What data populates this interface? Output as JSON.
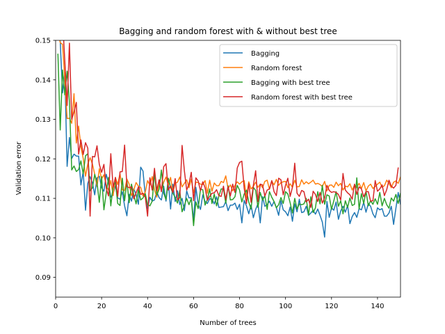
{
  "chart_data": {
    "type": "line",
    "title": "Bagging and random forest with & without best tree",
    "xlabel": "Number of trees",
    "ylabel": "Validation error",
    "xlim": [
      0,
      150
    ],
    "ylim": [
      0.085,
      0.15
    ],
    "xticks": [
      0,
      20,
      40,
      60,
      80,
      100,
      120,
      140
    ],
    "yticks": [
      0.09,
      0.1,
      0.11,
      0.12,
      0.13,
      0.14,
      0.15
    ],
    "ytick_labels": [
      "0.09",
      "0.10",
      "0.11",
      "0.12",
      "0.13",
      "0.14",
      "0.15"
    ],
    "grid": false,
    "legend_position": "top-right",
    "x_start": 1,
    "series": [
      {
        "name": "Bagging",
        "color": "#1f77b4",
        "values": [
          0.1532,
          0.1497,
          0.1367,
          0.1418,
          0.1181,
          0.1254,
          0.1201,
          0.1212,
          0.1207,
          0.1207,
          0.1134,
          0.1168,
          0.107,
          0.1138,
          0.1155,
          0.1139,
          0.1109,
          0.1152,
          0.1156,
          0.1127,
          0.1118,
          0.1161,
          0.1139,
          0.1103,
          0.1112,
          0.1132,
          0.1101,
          0.1098,
          0.1117,
          0.1081,
          0.1056,
          0.111,
          0.1093,
          0.1124,
          0.111,
          0.1085,
          0.1179,
          0.1169,
          0.1106,
          0.1074,
          0.1103,
          0.1093,
          0.1096,
          0.1117,
          0.1102,
          0.1096,
          0.1131,
          0.1093,
          0.1142,
          0.1073,
          0.1136,
          0.1092,
          0.1119,
          0.1084,
          0.11,
          0.1069,
          0.1119,
          0.1101,
          0.1102,
          0.1045,
          0.1128,
          0.1086,
          0.1072,
          0.1109,
          0.1092,
          0.1087,
          0.1099,
          0.1098,
          0.1086,
          0.1104,
          0.1077,
          0.1078,
          0.1079,
          0.1092,
          0.1069,
          0.1083,
          0.1083,
          0.1088,
          0.1072,
          0.1085,
          0.1038,
          0.1095,
          0.1081,
          0.1061,
          0.1083,
          0.1051,
          0.1072,
          0.1087,
          0.1038,
          0.1104,
          0.108,
          0.1084,
          0.1093,
          0.108,
          0.1092,
          0.1077,
          0.1057,
          0.1094,
          0.1071,
          0.1066,
          0.1056,
          0.1078,
          0.1042,
          0.1086,
          0.1066,
          0.1098,
          0.1064,
          0.1066,
          0.108,
          0.1057,
          0.1063,
          0.107,
          0.106,
          0.1073,
          0.1057,
          0.104,
          0.1002,
          0.1092,
          0.1052,
          0.1076,
          0.107,
          0.1091,
          0.1047,
          0.1068,
          0.108,
          0.1065,
          0.1082,
          0.1036,
          0.1054,
          0.1064,
          0.1052,
          0.1074,
          0.1071,
          0.109,
          0.1065,
          0.1087,
          0.108,
          0.1061,
          0.1051,
          0.1076,
          0.1071,
          0.1074,
          0.1055,
          0.1055,
          0.1063,
          0.108,
          0.1034,
          0.1075,
          0.1115,
          0.1085
        ]
      },
      {
        "name": "Random forest",
        "color": "#ff7f0e",
        "values": [
          0.1531,
          0.1494,
          0.149,
          0.1402,
          0.1302,
          0.1303,
          0.129,
          0.1365,
          0.124,
          0.1283,
          0.123,
          0.1201,
          0.1156,
          0.1187,
          0.1203,
          0.1187,
          0.1161,
          0.113,
          0.1175,
          0.1149,
          0.116,
          0.1133,
          0.1121,
          0.1145,
          0.1107,
          0.1153,
          0.1135,
          0.1163,
          0.1121,
          0.112,
          0.1149,
          0.1136,
          0.1107,
          0.1122,
          0.114,
          0.1131,
          0.1128,
          0.1106,
          0.1116,
          0.1145,
          0.1133,
          0.1155,
          0.1122,
          0.1103,
          0.1145,
          0.112,
          0.1141,
          0.1154,
          0.1133,
          0.1153,
          0.1115,
          0.1138,
          0.1141,
          0.1154,
          0.1129,
          0.1138,
          0.1147,
          0.1127,
          0.1149,
          0.1114,
          0.1141,
          0.114,
          0.1136,
          0.1135,
          0.1145,
          0.1113,
          0.1146,
          0.1118,
          0.1139,
          0.1132,
          0.1132,
          0.1143,
          0.114,
          0.1157,
          0.1125,
          0.1134,
          0.1119,
          0.1133,
          0.1142,
          0.1136,
          0.1142,
          0.1145,
          0.1102,
          0.1142,
          0.1124,
          0.113,
          0.1141,
          0.1128,
          0.1136,
          0.1127,
          0.1143,
          0.1146,
          0.1123,
          0.1144,
          0.1134,
          0.1148,
          0.1133,
          0.114,
          0.1142,
          0.1143,
          0.1127,
          0.1137,
          0.1128,
          0.1146,
          0.1129,
          0.113,
          0.1147,
          0.1136,
          0.1142,
          0.1137,
          0.1141,
          0.1146,
          0.1136,
          0.1138,
          0.1135,
          0.113,
          0.1143,
          0.1119,
          0.1133,
          0.1134,
          0.1128,
          0.1141,
          0.1132,
          0.1138,
          0.1121,
          0.1131,
          0.1129,
          0.1137,
          0.1121,
          0.1134,
          0.1128,
          0.1138,
          0.1125,
          0.114,
          0.1119,
          0.1131,
          0.1136,
          0.1125,
          0.113,
          0.1136,
          0.1141,
          0.1128,
          0.1132,
          0.1146,
          0.1138,
          0.1127,
          0.1141,
          0.1144,
          0.1138,
          0.1154
        ]
      },
      {
        "name": "Bagging with best tree",
        "color": "#2ca02c",
        "values": [
          0.1465,
          0.1273,
          0.1425,
          0.1362,
          0.1422,
          0.1345,
          0.1172,
          0.1182,
          0.1168,
          0.1173,
          0.1195,
          0.1162,
          0.1208,
          0.1213,
          0.1119,
          0.1127,
          0.1161,
          0.114,
          0.109,
          0.1155,
          0.1071,
          0.1113,
          0.1153,
          0.1081,
          0.1131,
          0.1141,
          0.1087,
          0.1082,
          0.1151,
          0.1094,
          0.1143,
          0.1089,
          0.1136,
          0.1109,
          0.1086,
          0.1122,
          0.1096,
          0.1101,
          0.1112,
          0.1084,
          0.1081,
          0.1093,
          0.1164,
          0.1108,
          0.1123,
          0.1172,
          0.1113,
          0.1097,
          0.1151,
          0.1128,
          0.1113,
          0.1102,
          0.1088,
          0.112,
          0.1066,
          0.1082,
          0.11,
          0.1084,
          0.11,
          0.1031,
          0.1091,
          0.1074,
          0.1123,
          0.1122,
          0.1083,
          0.1097,
          0.1124,
          0.1087,
          0.1111,
          0.1081,
          0.1106,
          0.1124,
          0.1124,
          0.1088,
          0.1132,
          0.1096,
          0.1097,
          0.1104,
          0.1133,
          0.1121,
          0.1091,
          0.1111,
          0.1121,
          0.1091,
          0.1073,
          0.1128,
          0.112,
          0.1077,
          0.1115,
          0.1095,
          0.1107,
          0.1072,
          0.1117,
          0.1103,
          0.1092,
          0.1076,
          0.1084,
          0.1102,
          0.1087,
          0.1117,
          0.1111,
          0.1089,
          0.1063,
          0.11,
          0.1073,
          0.1086,
          0.1084,
          0.1086,
          0.11,
          0.1058,
          0.1104,
          0.1064,
          0.1076,
          0.1117,
          0.1086,
          0.1133,
          0.1085,
          0.1109,
          0.1106,
          0.1072,
          0.1094,
          0.1117,
          0.108,
          0.1094,
          0.1061,
          0.1094,
          0.1077,
          0.1101,
          0.1082,
          0.1085,
          0.1152,
          0.1073,
          0.1112,
          0.1087,
          0.1118,
          0.1081,
          0.1094,
          0.1085,
          0.1099,
          0.1085,
          0.1115,
          0.1081,
          0.11,
          0.1084,
          0.1075,
          0.1101,
          0.1093,
          0.111,
          0.1087,
          0.1113,
          0.1092
        ]
      },
      {
        "name": "Random forest with best tree",
        "color": "#d62728",
        "values": [
          0.155,
          0.1529,
          0.1552,
          0.1448,
          0.1335,
          0.1493,
          0.13,
          0.1319,
          0.1343,
          0.1212,
          0.1248,
          0.1211,
          0.1241,
          0.1227,
          0.1055,
          0.1206,
          0.1205,
          0.1233,
          0.1186,
          0.1166,
          0.1186,
          0.1126,
          0.1106,
          0.1213,
          0.1128,
          0.1153,
          0.1105,
          0.1167,
          0.1168,
          0.1235,
          0.113,
          0.1127,
          0.1129,
          0.1099,
          0.1114,
          0.1129,
          0.111,
          0.1113,
          0.1103,
          0.1055,
          0.1152,
          0.1121,
          0.1176,
          0.112,
          0.1147,
          0.1117,
          0.118,
          0.1188,
          0.1121,
          0.1131,
          0.1115,
          0.115,
          0.1096,
          0.1102,
          0.1234,
          0.117,
          0.1121,
          0.1136,
          0.1166,
          0.1094,
          0.1152,
          0.1144,
          0.1119,
          0.1142,
          0.1127,
          0.1095,
          0.1105,
          0.1113,
          0.1114,
          0.1122,
          0.1107,
          0.1105,
          0.1131,
          0.1097,
          0.113,
          0.1106,
          0.1136,
          0.1115,
          0.1177,
          0.1191,
          0.1194,
          0.1126,
          0.1087,
          0.1138,
          0.109,
          0.1133,
          0.117,
          0.1092,
          0.1136,
          0.1134,
          0.1106,
          0.1121,
          0.1124,
          0.1145,
          0.1117,
          0.1107,
          0.1151,
          0.1147,
          0.1109,
          0.1133,
          0.1151,
          0.1105,
          0.1128,
          0.1189,
          0.1113,
          0.1105,
          0.112,
          0.1117,
          0.1091,
          0.1098,
          0.1077,
          0.1118,
          0.111,
          0.1092,
          0.1115,
          0.1088,
          0.1101,
          0.1133,
          0.112,
          0.1115,
          0.1117,
          0.1115,
          0.111,
          0.1096,
          0.1163,
          0.1121,
          0.1114,
          0.1109,
          0.1098,
          0.1136,
          0.111,
          0.1129,
          0.1124,
          0.1104,
          0.1117,
          0.1117,
          0.1093,
          0.1094,
          0.1145,
          0.1118,
          0.1124,
          0.1134,
          0.1107,
          0.1122,
          0.1146,
          0.1131,
          0.1126,
          0.1133,
          0.1177
        ]
      }
    ]
  }
}
